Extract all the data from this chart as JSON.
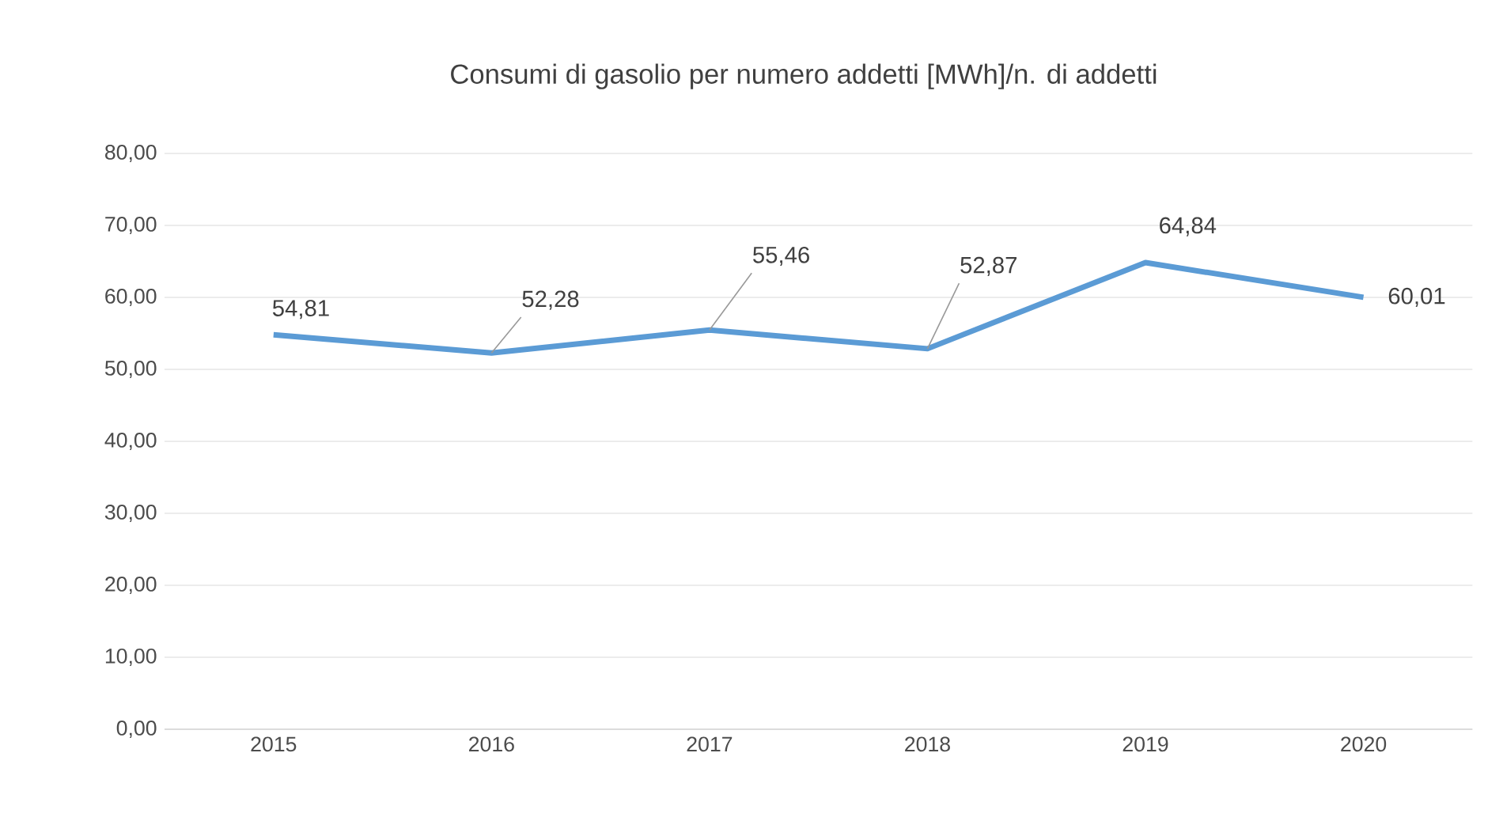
{
  "chart_data": {
    "type": "line",
    "title": "Consumi di gasolio per numero addetti [MWh]/n. di addetti",
    "categories": [
      "2015",
      "2016",
      "2017",
      "2018",
      "2019",
      "2020"
    ],
    "series": [
      {
        "color": "#5b9bd5",
        "values": [
          54.81,
          52.28,
          55.46,
          52.87,
          64.84,
          60.01
        ],
        "value_labels": [
          "54,81",
          "52,28",
          "55,46",
          "52,87",
          "64,84",
          "60,01"
        ]
      }
    ],
    "ylim": [
      0,
      80
    ],
    "yticks": [
      {
        "value": 0,
        "label": "0,00"
      },
      {
        "value": 10,
        "label": "10,00"
      },
      {
        "value": 20,
        "label": "20,00"
      },
      {
        "value": 30,
        "label": "30,00"
      },
      {
        "value": 40,
        "label": "40,00"
      },
      {
        "value": 50,
        "label": "50,00"
      },
      {
        "value": 60,
        "label": "60,00"
      },
      {
        "value": 70,
        "label": "70,00"
      },
      {
        "value": 80,
        "label": "80,00"
      }
    ],
    "grid": "y",
    "legend": false,
    "marker": "none",
    "line_style": "solid"
  }
}
